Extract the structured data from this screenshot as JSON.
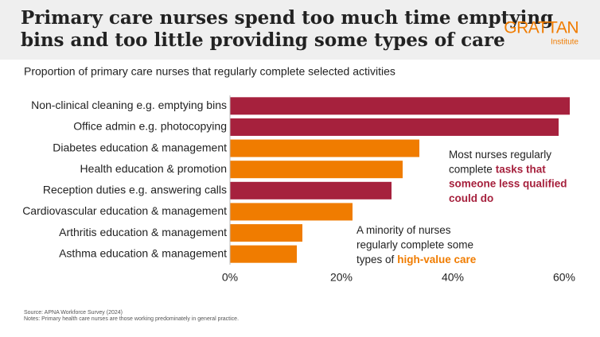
{
  "chart_data": {
    "type": "bar",
    "orientation": "horizontal",
    "title": "Primary care nurses spend too much time emptying bins and too little providing some types of care",
    "title_lines": [
      "Primary care nurses spend too much time emptying",
      "bins and too little providing some types of care"
    ],
    "brand": "GRATTAN",
    "brand_sub": "Institute",
    "subtitle": "Proportion of primary care nurses that regularly complete selected activities",
    "categories": [
      "Non-clinical cleaning e.g. emptying bins",
      "Office admin e.g. photocopying",
      "Diabetes education & management",
      "Health education & promotion",
      "Reception duties e.g. answering calls",
      "Cardiovascular education & management",
      "Arthritis education & management",
      "Asthma education & management"
    ],
    "values": [
      61,
      59,
      34,
      31,
      29,
      22,
      13,
      12
    ],
    "colors": [
      "#a6213d",
      "#a6213d",
      "#f07c00",
      "#f07c00",
      "#a6213d",
      "#f07c00",
      "#f07c00",
      "#f07c00"
    ],
    "xlim": [
      0,
      62
    ],
    "xticks": [
      {
        "value": 0,
        "label": "0%"
      },
      {
        "value": 20,
        "label": "20%"
      },
      {
        "value": 40,
        "label": "40%"
      },
      {
        "value": 60,
        "label": "60%"
      }
    ],
    "grid": false,
    "annotations": [
      {
        "text": [
          "Most nurses regularly",
          "complete"
        ],
        "highlight": [
          "tasks that",
          "someone less qualified",
          "could do"
        ],
        "color": "#a6213d"
      },
      {
        "text": [
          "A minority of nurses",
          "regularly complete some",
          "types of"
        ],
        "highlight": [
          "high-value care"
        ],
        "color": "#f07c00"
      }
    ],
    "source": "Source: APNA Workforce Survey (2024)",
    "notes": "Notes: Primary health care nurses are those working predominately in general practice."
  }
}
